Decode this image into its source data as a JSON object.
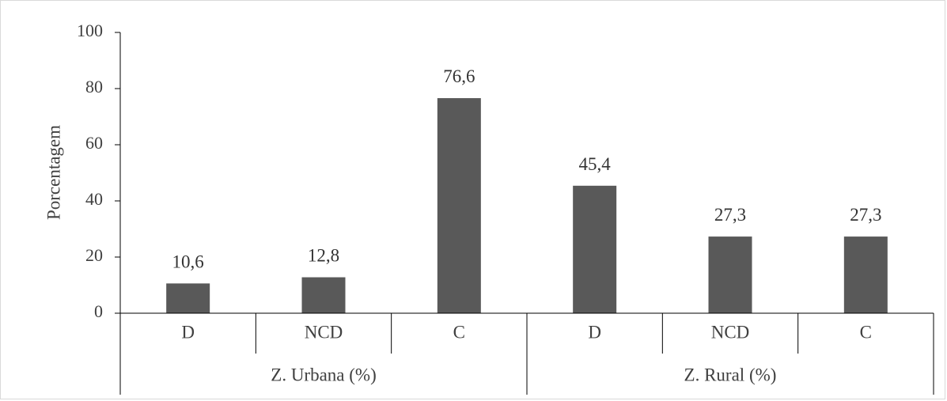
{
  "chart_data": {
    "type": "bar",
    "ylabel": "Porcentagem",
    "ylim": [
      0,
      100
    ],
    "yticks": [
      "0",
      "20",
      "40",
      "60",
      "80",
      "100"
    ],
    "groups": [
      {
        "label": "Z. Urbana (%)",
        "categories": [
          "D",
          "NCD",
          "C"
        ]
      },
      {
        "label": "Z. Rural (%)",
        "categories": [
          "D",
          "NCD",
          "C"
        ]
      }
    ],
    "categories": [
      "D",
      "NCD",
      "C",
      "D",
      "NCD",
      "C"
    ],
    "values": [
      10.6,
      12.8,
      76.6,
      45.4,
      27.3,
      27.3
    ],
    "data_labels": [
      "10,6",
      "12,8",
      "76,6",
      "45,4",
      "27,3",
      "27,3"
    ],
    "bar_color": "#595959",
    "grid": false,
    "legend": "none"
  }
}
